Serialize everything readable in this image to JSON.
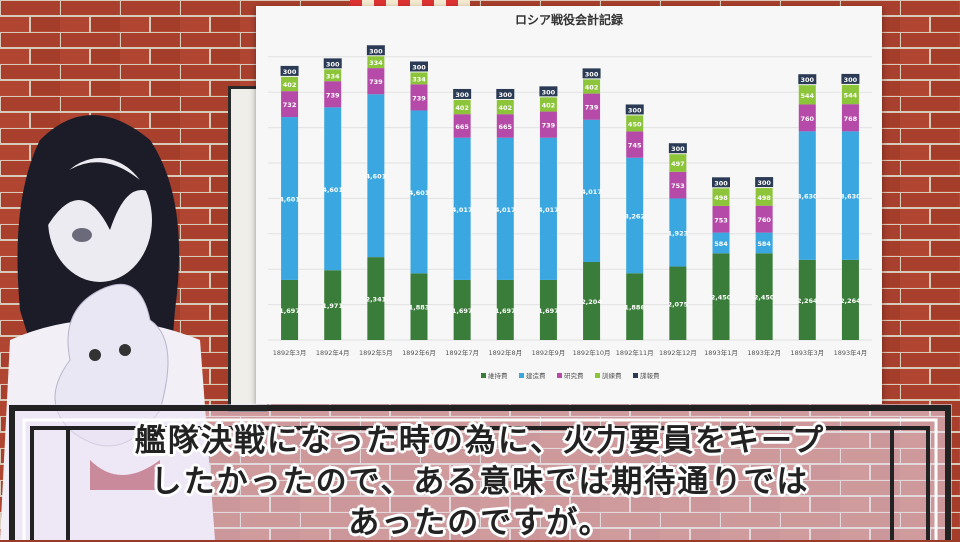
{
  "chart_data": {
    "type": "bar",
    "stacked": true,
    "title": "ロシア戦役会計記録",
    "categories": [
      "1892年3月",
      "1892年4月",
      "1892年5月",
      "1892年6月",
      "1892年7月",
      "1892年8月",
      "1892年9月",
      "1892年10月",
      "1892年11月",
      "1892年12月",
      "1893年1月",
      "1893年2月",
      "1893年3月",
      "1893年4月"
    ],
    "series": [
      {
        "name": "維持費",
        "color": "#3a7d3a",
        "values": [
          1697,
          1971,
          2341,
          1883,
          1697,
          1697,
          1697,
          2204,
          1886,
          2075,
          2450,
          2450,
          2264,
          2264
        ],
        "labels": [
          "1,697",
          "1,971",
          "2,341",
          "1,883",
          "1,697",
          "1,697",
          "1,697",
          "2,204",
          "1,886",
          "2,075",
          "2,450",
          "2,450",
          "2,264",
          "2,264"
        ]
      },
      {
        "name": "建造費",
        "color": "#3aa7e0",
        "values": [
          4601,
          4601,
          4601,
          4601,
          4017,
          4017,
          4017,
          4017,
          3262,
          1923,
          584,
          584,
          3630,
          3630
        ],
        "labels": [
          "4,601",
          "4,601",
          "4,601",
          "4,601",
          "4,017",
          "4,017",
          "4,017",
          "4,017",
          "3,262",
          "1,923",
          "584",
          "584",
          "3,630",
          "3,630"
        ]
      },
      {
        "name": "研究費",
        "color": "#b54aa8",
        "values": [
          732,
          739,
          739,
          739,
          665,
          665,
          739,
          739,
          745,
          753,
          753,
          760,
          760,
          768
        ],
        "labels": [
          "732",
          "739",
          "739",
          "739",
          "665",
          "665",
          "739",
          "739",
          "745",
          "753",
          "753",
          "760",
          "760",
          "768"
        ]
      },
      {
        "name": "訓練費",
        "color": "#8cc43a",
        "values": [
          402,
          334,
          334,
          334,
          402,
          402,
          402,
          402,
          450,
          497,
          498,
          498,
          544,
          544
        ],
        "labels": [
          "402",
          "334",
          "334",
          "334",
          "402",
          "402",
          "402",
          "402",
          "450",
          "497",
          "498",
          "498",
          "544",
          "544"
        ]
      },
      {
        "name": "諜報費",
        "color": "#2b3b55",
        "values": [
          300,
          300,
          300,
          300,
          300,
          300,
          300,
          300,
          300,
          300,
          300,
          300,
          300,
          300
        ],
        "labels": [
          "300",
          "300",
          "300",
          "300",
          "300",
          "300",
          "300",
          "300",
          "300",
          "300",
          "300",
          "300",
          "300",
          "300"
        ]
      }
    ],
    "legend_position": "bottom",
    "grid": true
  },
  "subtitle": {
    "line1": "艦隊決戦になった時の為に、火力要員をキープ",
    "line2": "したかったので、ある意味では期待通りでは",
    "line3": "あったのですが。"
  }
}
